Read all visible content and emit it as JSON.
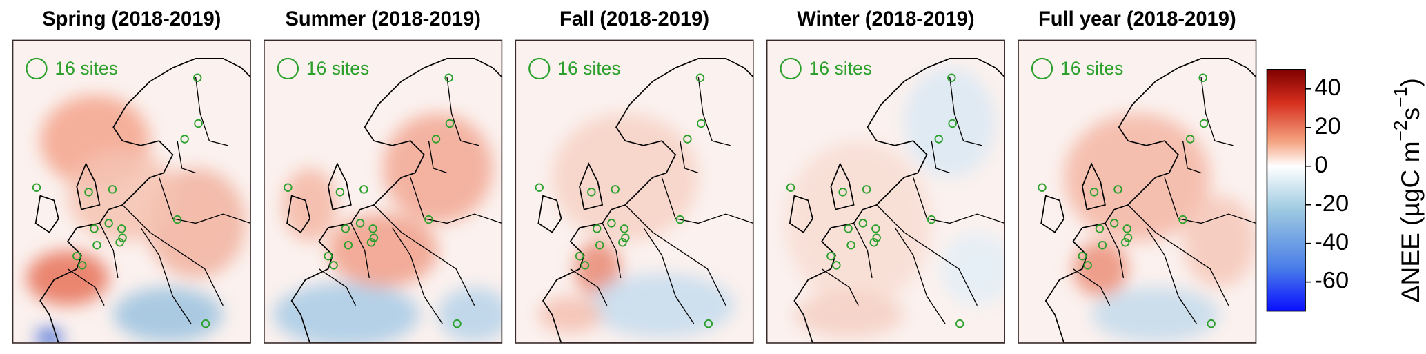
{
  "panels": [
    {
      "title": "Spring (2018-2019)",
      "legend": "16 sites"
    },
    {
      "title": "Summer (2018-2019)",
      "legend": "16 sites"
    },
    {
      "title": "Fall (2018-2019)",
      "legend": "16 sites"
    },
    {
      "title": "Winter (2018-2019)",
      "legend": "16 sites"
    },
    {
      "title": "Full year (2018-2019)",
      "legend": "16 sites"
    }
  ],
  "colorbar": {
    "label_parts": [
      "ΔNEE (µgC m",
      "−2",
      "s",
      "−1",
      ")"
    ],
    "clim": [
      -75,
      50
    ],
    "ticks": [
      -60,
      -40,
      -20,
      0,
      20,
      40
    ]
  }
}
